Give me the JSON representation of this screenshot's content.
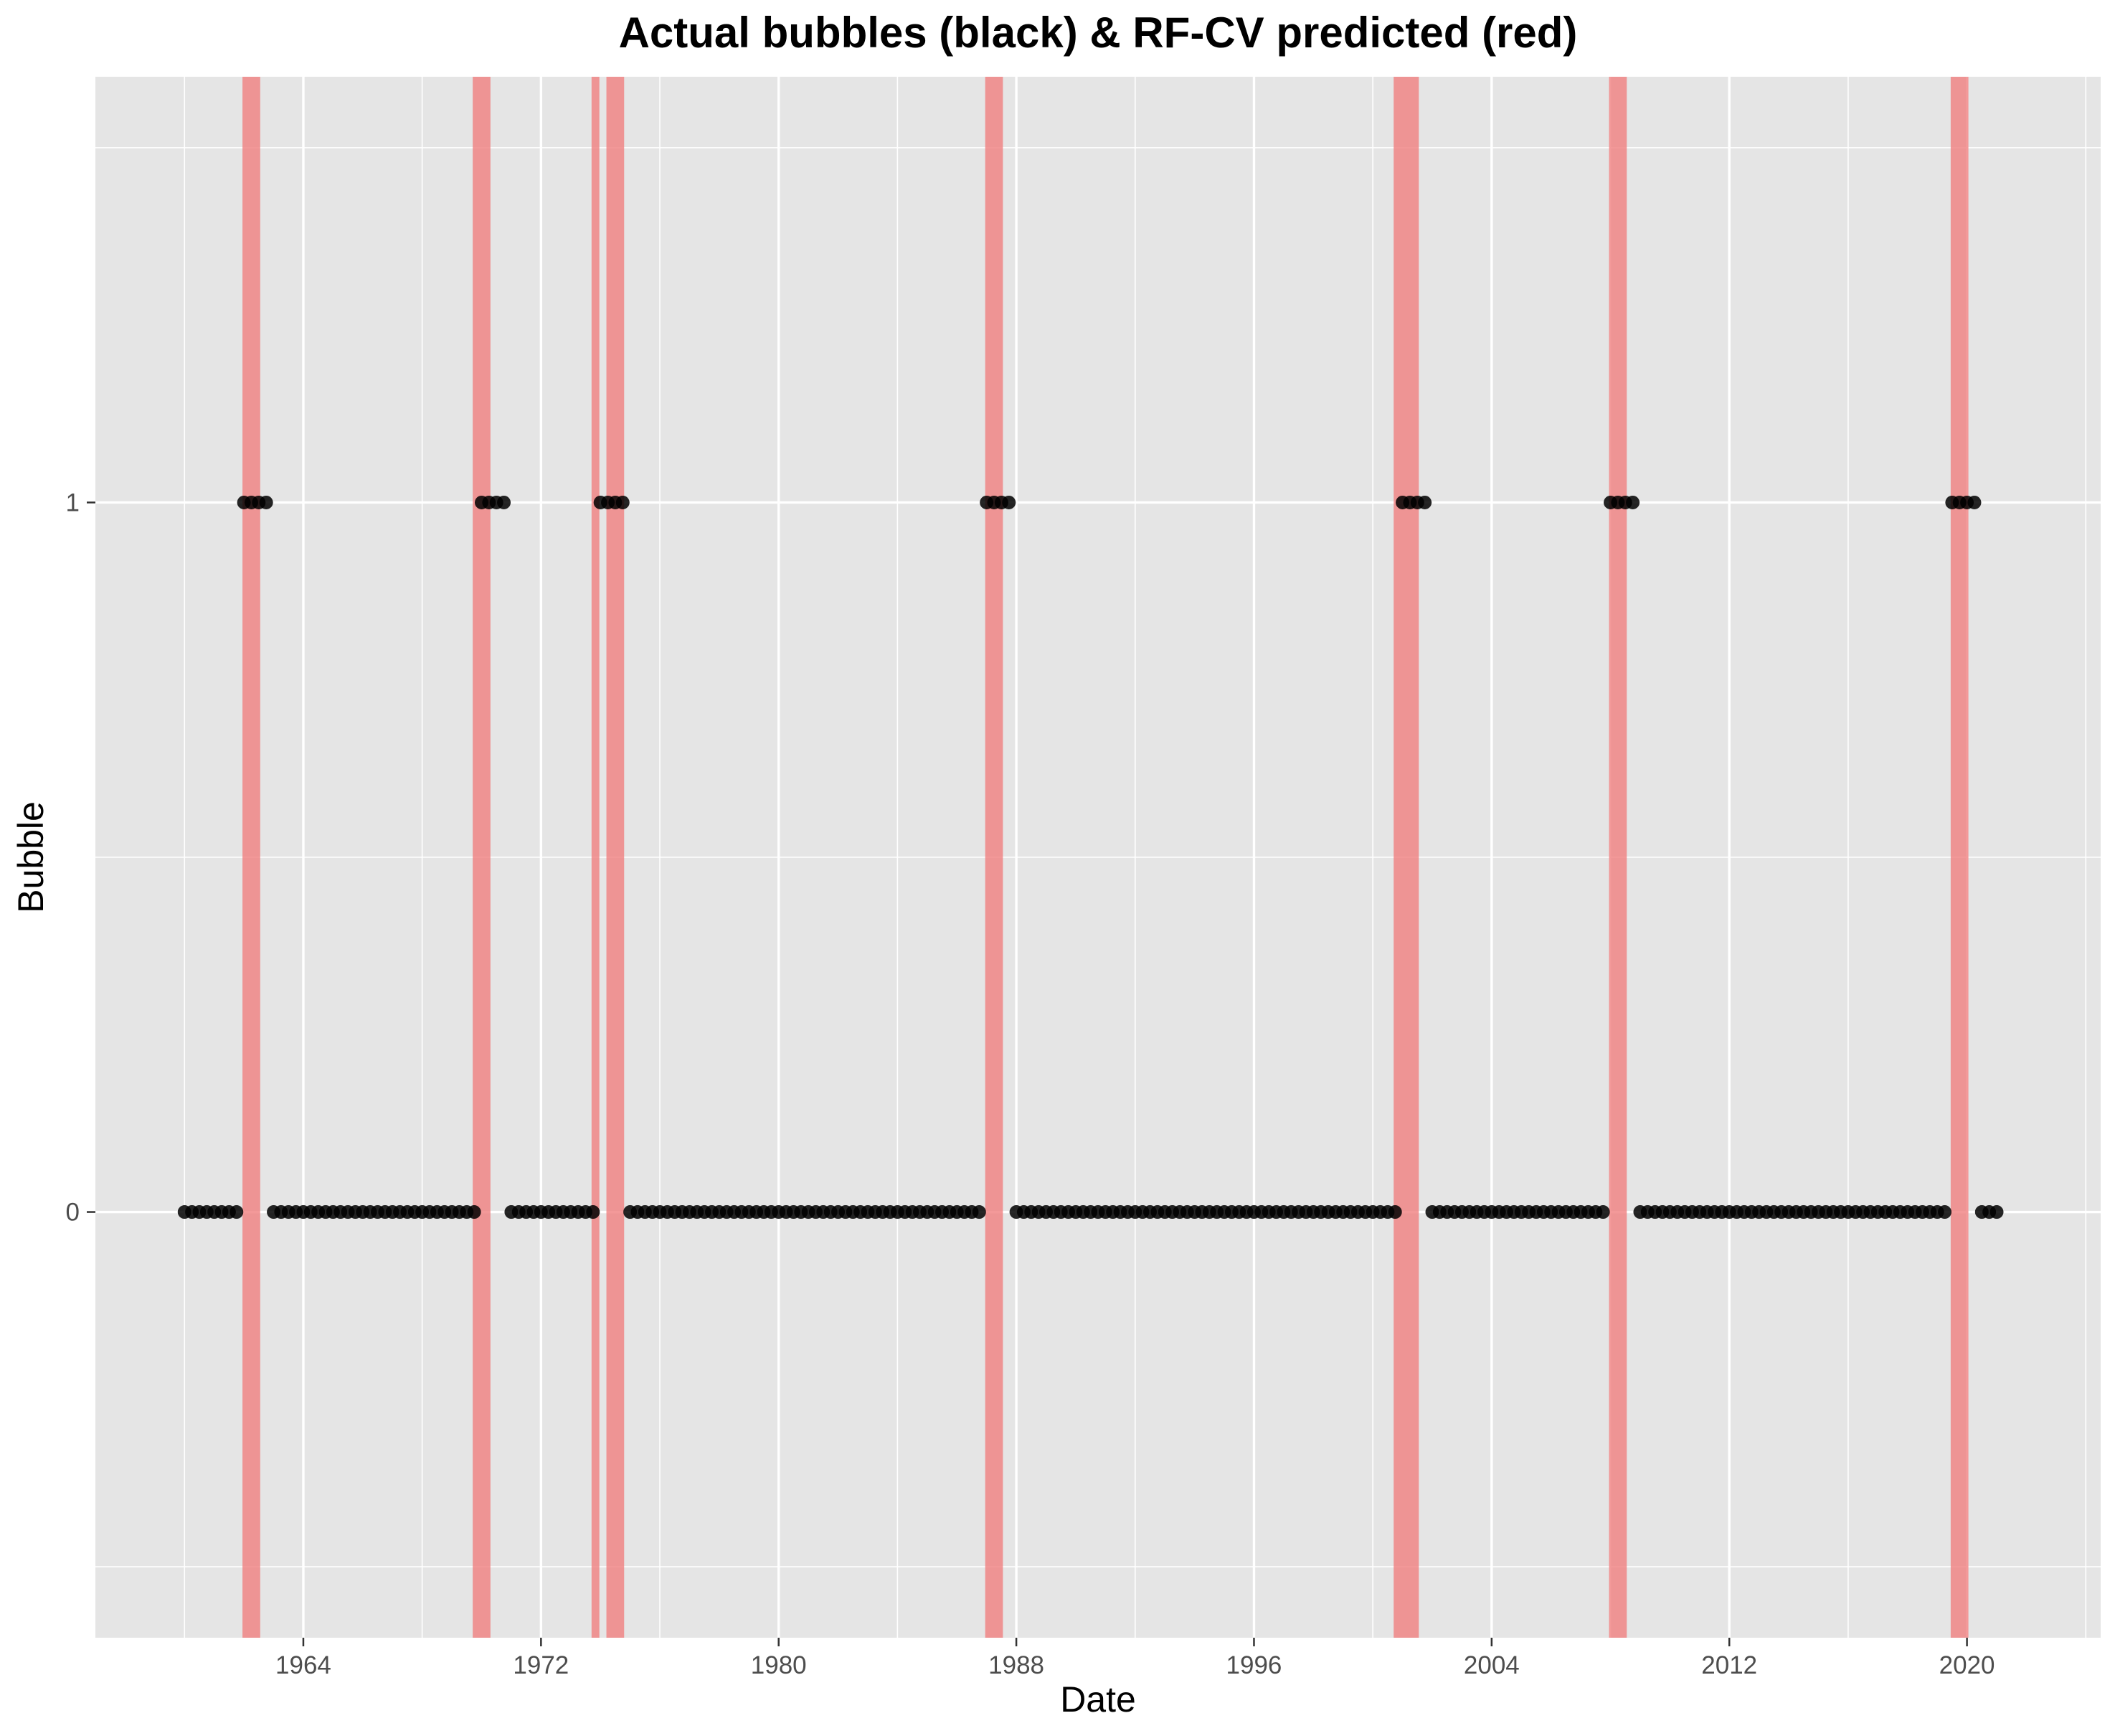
{
  "chart_data": {
    "type": "scatter",
    "title": "Actual bubbles (black) & RF-CV predicted (red)",
    "xlabel": "Date",
    "ylabel": "Bubble",
    "x_ticks": [
      "1964",
      "1972",
      "1980",
      "1988",
      "1996",
      "2004",
      "2012",
      "2020"
    ],
    "y_ticks": [
      "0",
      "1"
    ],
    "xlim": [
      "1957-01-01",
      "2024-07-01"
    ],
    "ylim": [
      -0.6,
      1.6
    ],
    "grid": true,
    "colors": {
      "panel_background": "#e5e5e5",
      "gridline": "#ffffff",
      "actual_points": "#000000",
      "predicted_bands": "#f08080",
      "band_opacity": 0.8
    },
    "series": [
      {
        "marker": "point",
        "values_shown": [
          0,
          1
        ],
        "x_range": [
          "1960-01-01",
          "2021-01-01"
        ],
        "segments_value_1": [
          [
            "1962-01-01",
            "1962-10-01"
          ],
          [
            "1970-01-01",
            "1970-10-01"
          ],
          [
            "1974-01-01",
            "1974-10-01"
          ],
          [
            "1987-01-01",
            "1987-10-01"
          ],
          [
            "2001-01-01",
            "2001-10-01"
          ],
          [
            "2008-01-01",
            "2008-10-01"
          ],
          [
            "2019-07-01",
            "2020-04-01"
          ]
        ]
      },
      {
        "marker": "band",
        "intervals": [
          [
            "1962-01-01",
            "1962-07-01"
          ],
          [
            "1969-10-01",
            "1970-04-01"
          ],
          [
            "1973-10-01",
            "1973-12-01"
          ],
          [
            "1974-04-01",
            "1974-10-01"
          ],
          [
            "1987-01-01",
            "1987-07-01"
          ],
          [
            "2000-10-01",
            "2001-07-01"
          ],
          [
            "2008-01-01",
            "2008-07-01"
          ],
          [
            "2019-07-01",
            "2020-01-01"
          ]
        ]
      }
    ]
  }
}
